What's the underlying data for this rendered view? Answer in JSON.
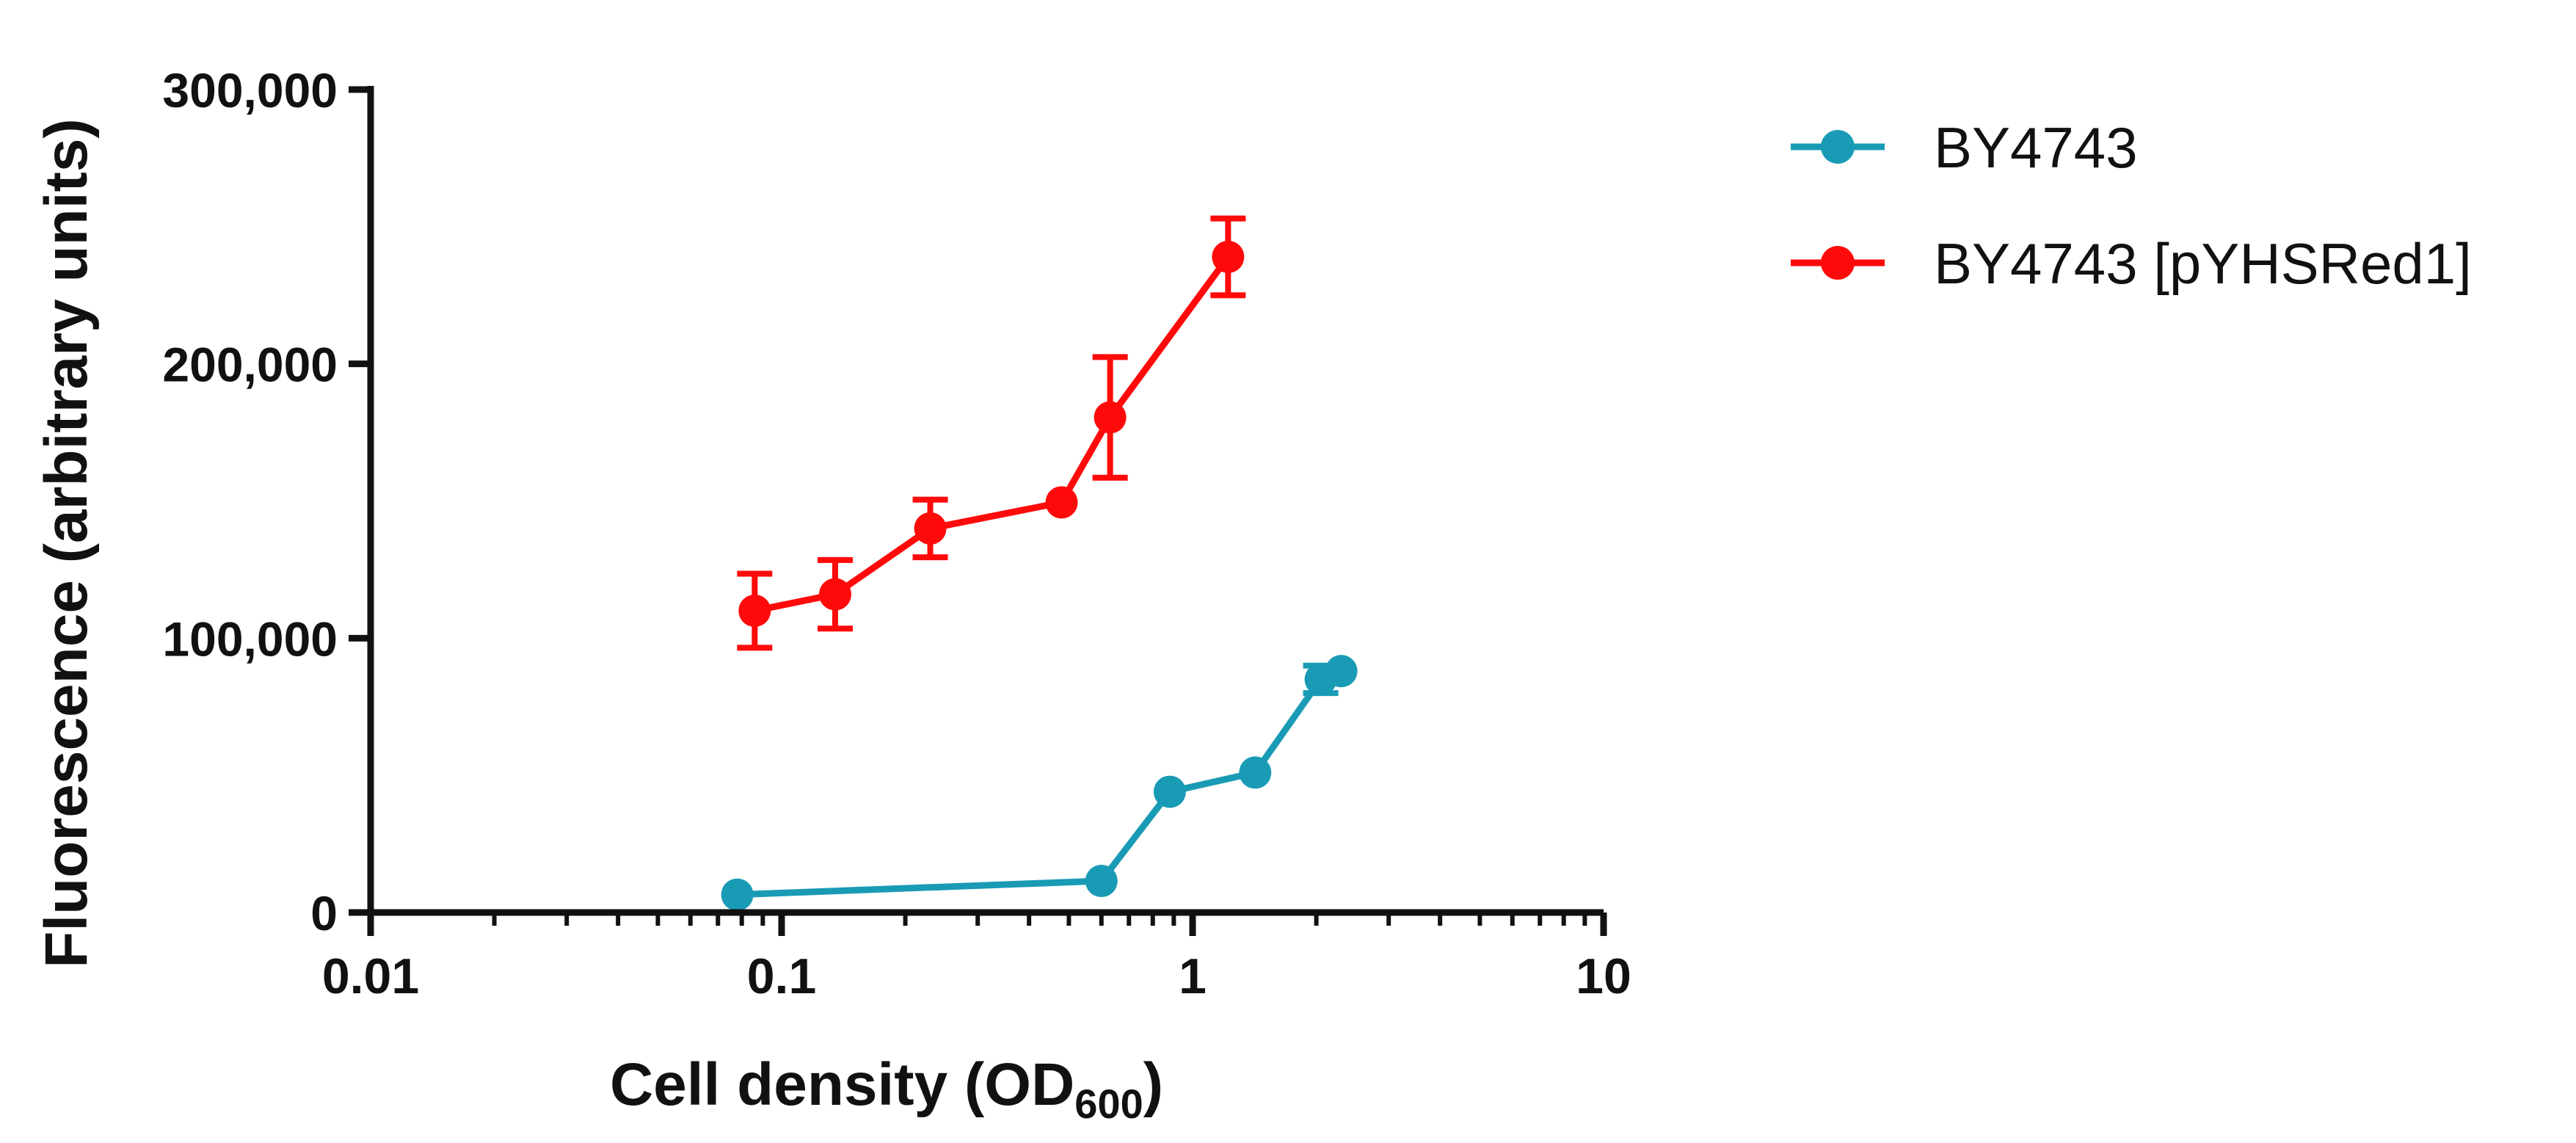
{
  "chart_data": {
    "type": "line",
    "xlabel": "Cell density (OD",
    "xlabel_subscript": "600",
    "xlabel_suffix": ")",
    "ylabel": "Fluorescence (arbitrary units)",
    "x_scale": "log",
    "xlim": [
      0.01,
      10
    ],
    "ylim": [
      0,
      300000
    ],
    "x_ticks": [
      {
        "value": 0.01,
        "label": "0.01"
      },
      {
        "value": 0.1,
        "label": "0.1"
      },
      {
        "value": 1,
        "label": "1"
      },
      {
        "value": 10,
        "label": "10"
      }
    ],
    "y_ticks": [
      {
        "value": 0,
        "label": "0"
      },
      {
        "value": 100000,
        "label": "100,000"
      },
      {
        "value": 200000,
        "label": "200,000"
      },
      {
        "value": 300000,
        "label": "300,000"
      }
    ],
    "grid": false,
    "legend_position": "top-right, outside plot",
    "series": [
      {
        "name": "BY4743",
        "color": "#1a9bb5",
        "points": [
          {
            "x": 0.078,
            "y": 6500,
            "err": 0
          },
          {
            "x": 0.6,
            "y": 11500,
            "err": 0
          },
          {
            "x": 0.88,
            "y": 44000,
            "err": 0
          },
          {
            "x": 1.42,
            "y": 51000,
            "err": 0
          },
          {
            "x": 2.05,
            "y": 85000,
            "err": 5000
          },
          {
            "x": 2.3,
            "y": 88000,
            "err": 0
          }
        ]
      },
      {
        "name": "BY4743 [pYHSRed1]",
        "color": "#ff0a0a",
        "points": [
          {
            "x": 0.086,
            "y": 110000,
            "err": 13500
          },
          {
            "x": 0.135,
            "y": 116000,
            "err": 12500
          },
          {
            "x": 0.23,
            "y": 140000,
            "err": 10500
          },
          {
            "x": 0.48,
            "y": 149500,
            "err": 0
          },
          {
            "x": 0.63,
            "y": 180500,
            "err": 22000
          },
          {
            "x": 1.22,
            "y": 239000,
            "err": 14000
          }
        ]
      }
    ]
  }
}
